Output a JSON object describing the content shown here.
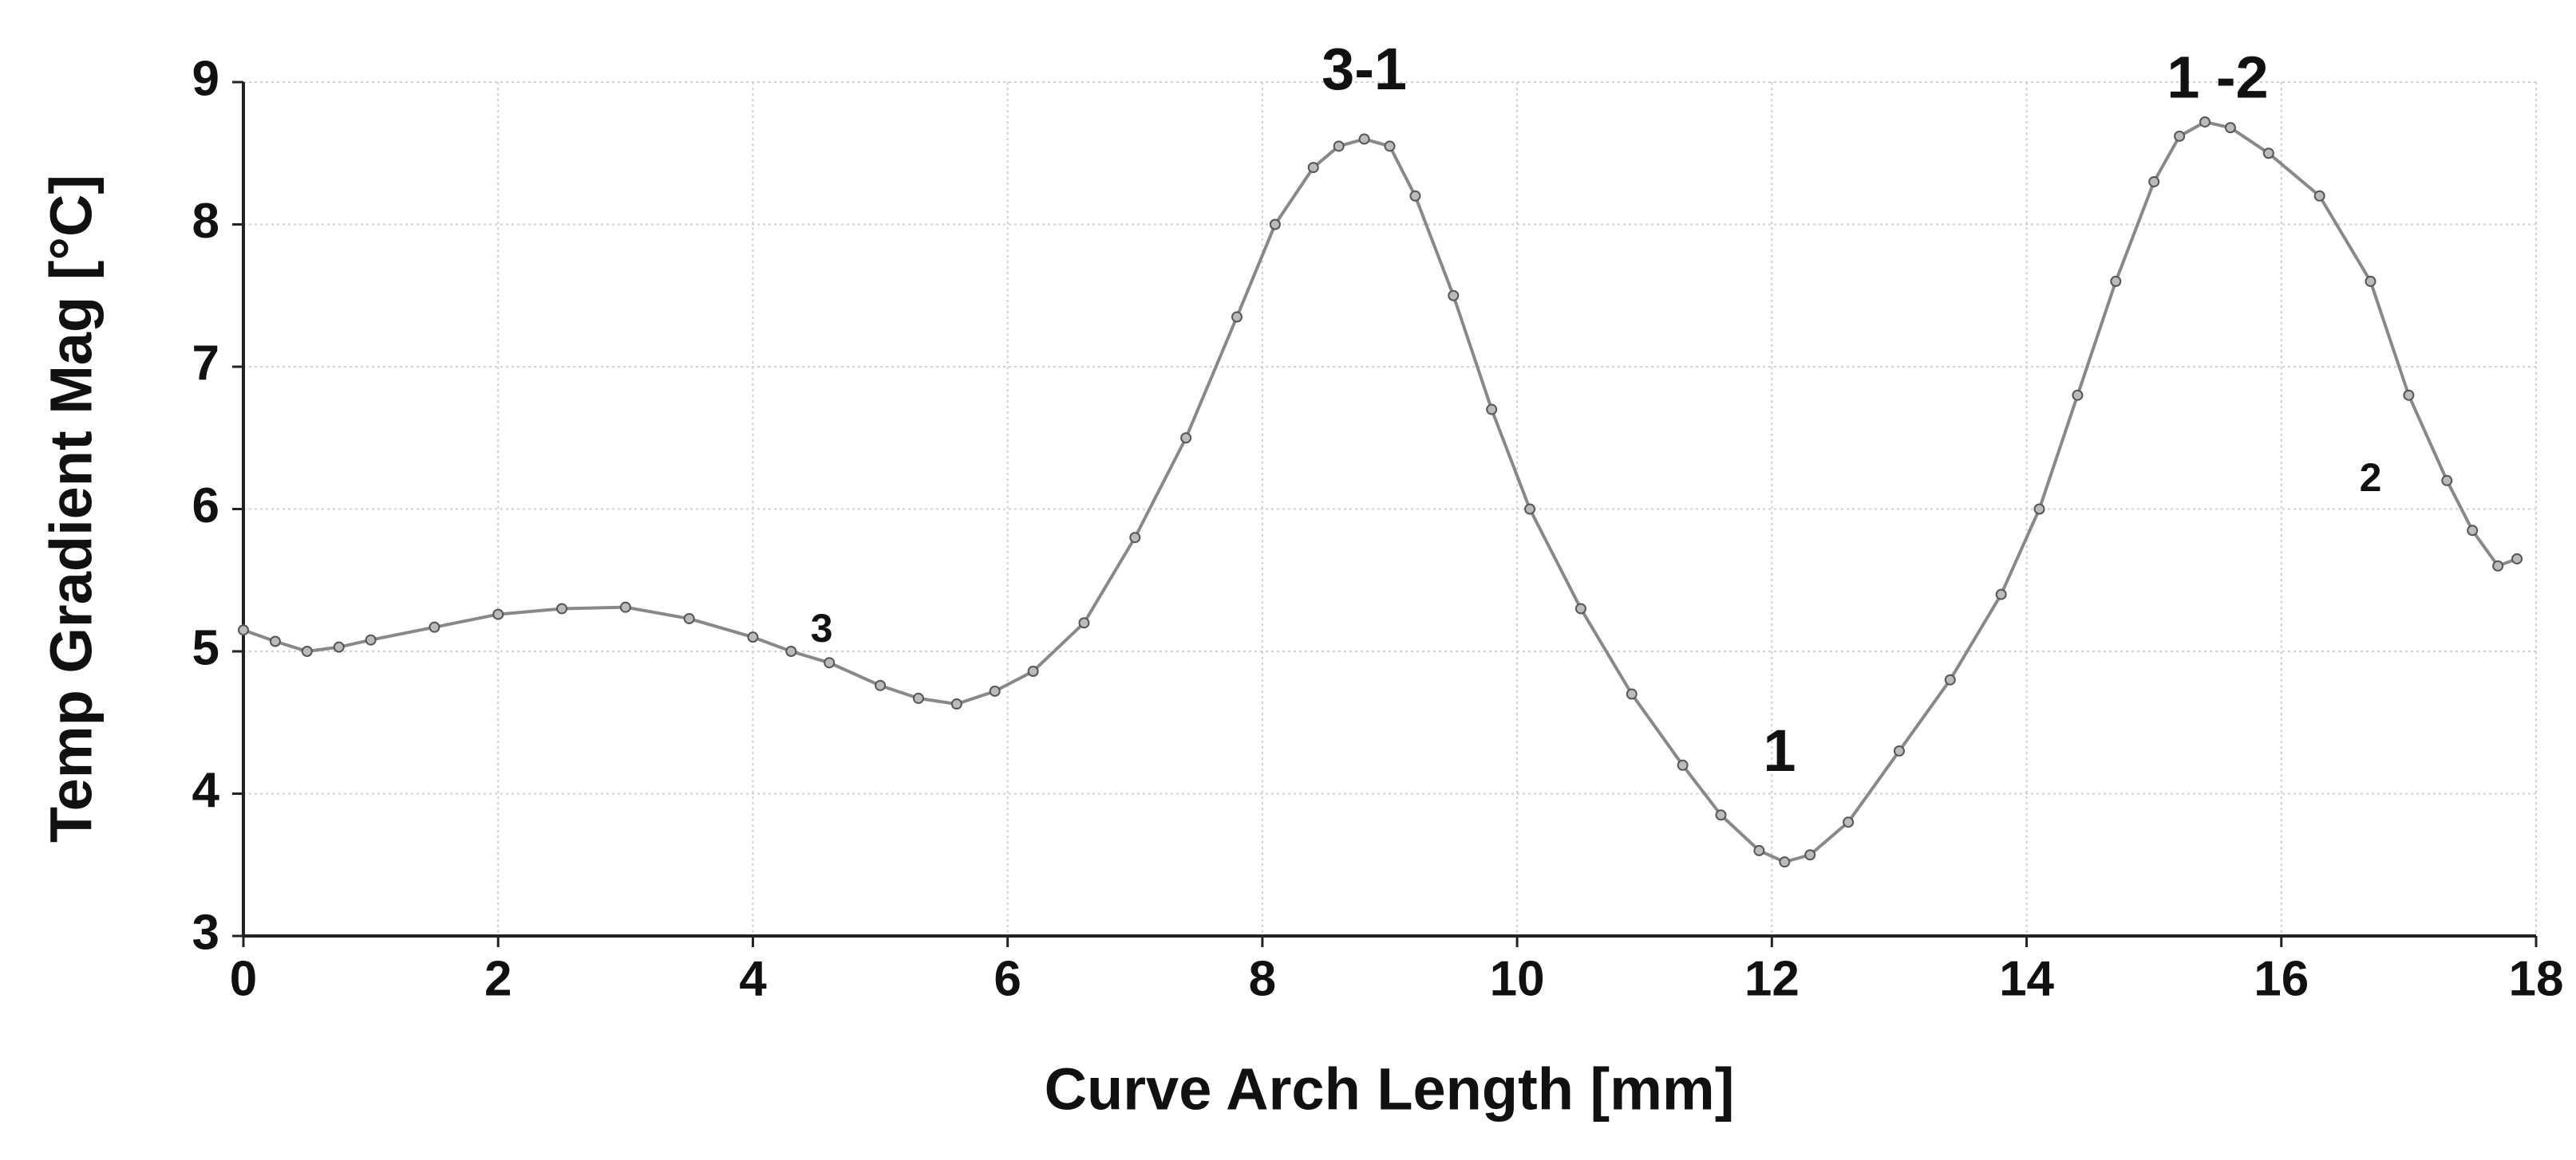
{
  "chart_data": {
    "type": "line",
    "xlabel": "Curve Arch Length [mm]",
    "ylabel": "Temp Gradient Mag [°C]",
    "xlim": [
      0,
      18
    ],
    "ylim": [
      3,
      9
    ],
    "xticks": [
      0,
      2,
      4,
      6,
      8,
      10,
      12,
      14,
      16,
      18
    ],
    "yticks": [
      3,
      4,
      5,
      6,
      7,
      8,
      9
    ],
    "grid": true,
    "series": [
      {
        "color": "#888888",
        "x": [
          0,
          0.25,
          0.5,
          0.75,
          1.0,
          1.5,
          2.0,
          2.5,
          3.0,
          3.5,
          4.0,
          4.3,
          4.6,
          5.0,
          5.3,
          5.6,
          5.9,
          6.2,
          6.6,
          7.0,
          7.4,
          7.8,
          8.1,
          8.4,
          8.6,
          8.8,
          9.0,
          9.2,
          9.5,
          9.8,
          10.1,
          10.5,
          10.9,
          11.3,
          11.6,
          11.9,
          12.1,
          12.3,
          12.6,
          13.0,
          13.4,
          13.8,
          14.1,
          14.4,
          14.7,
          15.0,
          15.2,
          15.4,
          15.6,
          15.9,
          16.3,
          16.7,
          17.0,
          17.3,
          17.5,
          17.7,
          17.85
        ],
        "values": [
          5.15,
          5.07,
          5.0,
          5.03,
          5.08,
          5.17,
          5.26,
          5.3,
          5.31,
          5.23,
          5.1,
          5.0,
          4.92,
          4.76,
          4.67,
          4.63,
          4.72,
          4.86,
          5.2,
          5.8,
          6.5,
          7.35,
          8.0,
          8.4,
          8.55,
          8.6,
          8.55,
          8.2,
          7.5,
          6.7,
          6.0,
          5.3,
          4.7,
          4.2,
          3.85,
          3.6,
          3.52,
          3.57,
          3.8,
          4.3,
          4.8,
          5.4,
          6.0,
          6.8,
          7.6,
          8.3,
          8.62,
          8.72,
          8.68,
          8.5,
          8.2,
          7.6,
          6.8,
          6.2,
          5.85,
          5.6,
          5.65
        ]
      }
    ],
    "annotations": [
      {
        "text": "3-1",
        "x": 8.8,
        "y": 9.06,
        "size": "big"
      },
      {
        "text": "1 -2",
        "x": 15.5,
        "y": 9.0,
        "size": "big"
      },
      {
        "text": "1",
        "x": 12.06,
        "y": 4.27,
        "size": "big"
      },
      {
        "text": "2",
        "x": 16.7,
        "y": 6.2,
        "size": "small"
      },
      {
        "text": "3",
        "x": 4.54,
        "y": 5.14,
        "size": "small"
      }
    ]
  }
}
